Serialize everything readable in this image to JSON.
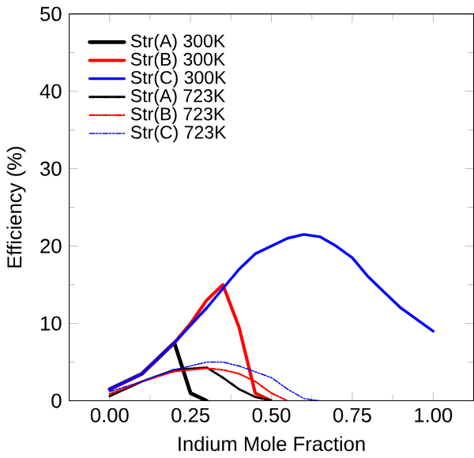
{
  "chart_data": {
    "type": "line",
    "xlabel": "Indium Mole Fraction",
    "ylabel": "Efficiency (%)",
    "xlim": [
      -0.125,
      1.125
    ],
    "ylim": [
      0,
      50
    ],
    "xticks": [
      {
        "value": 0,
        "label": "0.00"
      },
      {
        "value": 0.25,
        "label": "0.25"
      },
      {
        "value": 0.5,
        "label": "0.50"
      },
      {
        "value": 0.75,
        "label": "0.75"
      },
      {
        "value": 1,
        "label": "1.00"
      }
    ],
    "yticks": [
      0,
      10,
      20,
      30,
      40,
      50
    ],
    "legend": "top left",
    "grid": false,
    "marker": "none",
    "series": [
      {
        "name": "Str(A) 300K",
        "color": "#000000",
        "line_style": "solid",
        "x": [
          0,
          0.1,
          0.2,
          0.25,
          0.3
        ],
        "values": [
          1.5,
          3.5,
          7.5,
          1,
          0
        ]
      },
      {
        "name": "Str(B) 300K",
        "color": "#ff0000",
        "line_style": "solid",
        "x": [
          0,
          0.1,
          0.2,
          0.25,
          0.3,
          0.35,
          0.4,
          0.45,
          0.5
        ],
        "values": [
          1.5,
          3.5,
          7.5,
          10,
          13,
          15,
          9.5,
          1,
          0
        ]
      },
      {
        "name": "Str(C) 300K",
        "color": "#0000ff",
        "line_style": "solid",
        "x": [
          0,
          0.1,
          0.2,
          0.3,
          0.35,
          0.4,
          0.45,
          0.5,
          0.55,
          0.6,
          0.65,
          0.7,
          0.75,
          0.8,
          0.85,
          0.9,
          0.95,
          1.0
        ],
        "values": [
          1.5,
          3.5,
          7.5,
          12,
          14.5,
          17,
          19,
          20,
          21,
          21.5,
          21.2,
          20,
          18.5,
          16,
          14,
          12,
          10.5,
          9
        ]
      },
      {
        "name": "Str(A) 723K",
        "color": "#000000",
        "line_style": "dashdot",
        "x": [
          0,
          0.1,
          0.2,
          0.3,
          0.35,
          0.4,
          0.45,
          0.5
        ],
        "values": [
          0.6,
          2.5,
          4,
          4.3,
          3,
          1.5,
          0.5,
          0
        ]
      },
      {
        "name": "Str(B) 723K",
        "color": "#ff0000",
        "line_style": "dashdot",
        "x": [
          0,
          0.1,
          0.2,
          0.3,
          0.35,
          0.4,
          0.45,
          0.5,
          0.55
        ],
        "values": [
          0.9,
          2.5,
          3.8,
          4.2,
          4,
          3.5,
          2.5,
          1,
          0
        ]
      },
      {
        "name": "Str(C) 723K",
        "color": "#0000ff",
        "line_style": "dashdot",
        "x": [
          0,
          0.1,
          0.2,
          0.3,
          0.35,
          0.4,
          0.5,
          0.55,
          0.6,
          0.65
        ],
        "values": [
          1.2,
          2.5,
          4,
          5,
          5,
          4.5,
          3,
          1.5,
          0.3,
          0
        ]
      }
    ]
  }
}
